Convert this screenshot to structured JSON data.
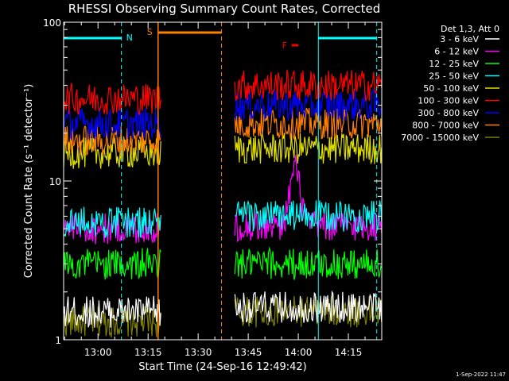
{
  "chart_data": {
    "type": "line",
    "title": "RHESSI Observing Summary Count Rates, Corrected",
    "xlabel": "Start Time (24-Sep-16 12:49:42)",
    "ylabel": "Corrected Count Rate (s⁻¹ detector⁻¹)",
    "yscale": "log",
    "ylim": [
      1,
      100
    ],
    "xlim": [
      "12:49:42",
      "14:25:00"
    ],
    "x_ticks": [
      "13:00",
      "13:15",
      "13:30",
      "13:45",
      "14:00",
      "14:15"
    ],
    "y_ticks": [
      "1",
      "10",
      "100"
    ],
    "legend_title": "Det 1,3, Att 0",
    "legend_position": "right",
    "footer_date": "1-Sep-2022 11:47",
    "annotations": [
      {
        "label": "N",
        "color": "#00ffff",
        "start": "12:49:42",
        "end": "13:07:00"
      },
      {
        "label": "S",
        "color": "#ff7f00",
        "start": "13:18:00",
        "end": "13:37:00"
      },
      {
        "label": "F",
        "color": "#ff0000",
        "start": "13:58:00",
        "end": "14:00:00"
      },
      {
        "label": "",
        "color": "#00ffff",
        "start": "14:06:00",
        "end": "14:23:30"
      }
    ],
    "data_gaps": [
      {
        "start": "13:19:00",
        "end": "13:41:00"
      }
    ],
    "series": [
      {
        "name": "3 - 6 keV",
        "color": "#ffffff",
        "pre_gap_level": 1.5,
        "post_gap_level": 1.6
      },
      {
        "name": "6 - 12 keV",
        "color": "#ff00ff",
        "pre_gap_level": 5.0,
        "post_gap_level": 5.2,
        "peak": {
          "time": "13:59:00",
          "value": 12
        }
      },
      {
        "name": "12 - 25 keV",
        "color": "#00ff00",
        "pre_gap_level": 3.0,
        "post_gap_level": 3.0
      },
      {
        "name": "25 - 50 keV",
        "color": "#00ffff",
        "pre_gap_level": 5.5,
        "post_gap_level": 6.0
      },
      {
        "name": "50 - 100 keV",
        "color": "#dddd00",
        "pre_gap_level": 15.0,
        "post_gap_level": 16.0
      },
      {
        "name": "100 - 300 keV",
        "color": "#ff0000",
        "pre_gap_level": 33.0,
        "post_gap_level": 40.0
      },
      {
        "name": "300 - 800 keV",
        "color": "#0000ff",
        "pre_gap_level": 23.0,
        "post_gap_level": 30.0
      },
      {
        "name": "800 - 7000 keV",
        "color": "#ff7f00",
        "pre_gap_level": 18.0,
        "post_gap_level": 23.0
      },
      {
        "name": "7000 - 15000 keV",
        "color": "#7f7f00",
        "pre_gap_level": 1.3,
        "post_gap_level": 1.5
      }
    ]
  }
}
